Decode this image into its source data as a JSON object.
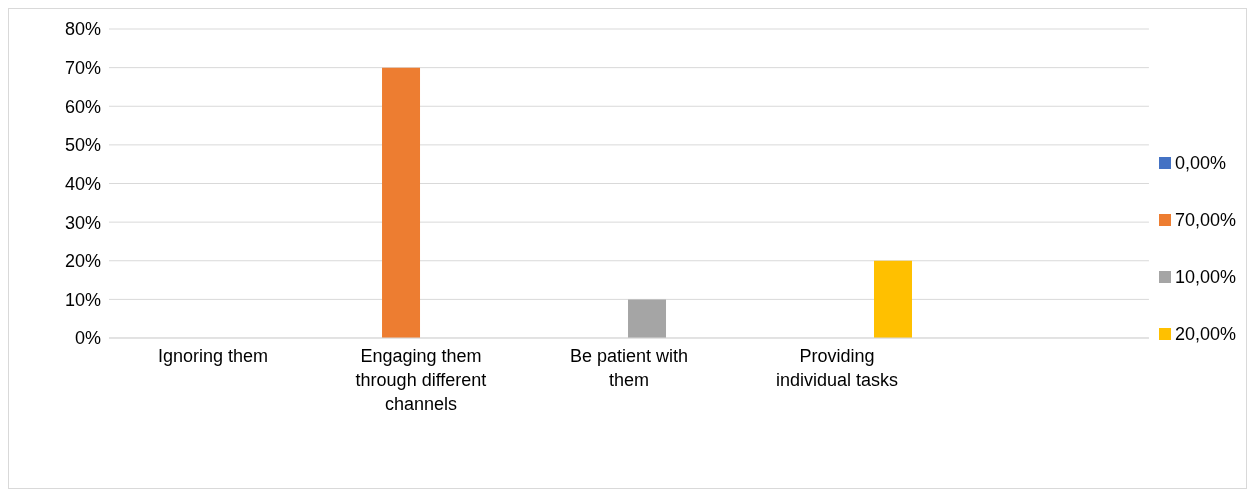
{
  "chart_data": {
    "type": "bar",
    "categories": [
      "Ignoring them",
      "Engaging them through different channels",
      "Be patient with them",
      "Providing individual tasks",
      null
    ],
    "series": [
      {
        "name": "0,00%",
        "color": "#4472c4",
        "values": [
          0,
          null,
          null,
          null,
          null
        ]
      },
      {
        "name": "70,00%",
        "color": "#ed7d31",
        "values": [
          null,
          70,
          null,
          null,
          null
        ]
      },
      {
        "name": "10,00%",
        "color": "#a5a5a5",
        "values": [
          null,
          null,
          10,
          null,
          null
        ]
      },
      {
        "name": "20,00%",
        "color": "#ffc000",
        "values": [
          null,
          null,
          null,
          20,
          null
        ]
      }
    ],
    "ylim": [
      0,
      80
    ],
    "yticks": [
      {
        "value": 0,
        "label": "0%"
      },
      {
        "value": 10,
        "label": "10%"
      },
      {
        "value": 20,
        "label": "20%"
      },
      {
        "value": 30,
        "label": "30%"
      },
      {
        "value": 40,
        "label": "40%"
      },
      {
        "value": 50,
        "label": "50%"
      },
      {
        "value": 60,
        "label": "60%"
      },
      {
        "value": 70,
        "label": "70%"
      },
      {
        "value": 80,
        "label": "80%"
      }
    ],
    "grid": "y",
    "legend": "right"
  }
}
